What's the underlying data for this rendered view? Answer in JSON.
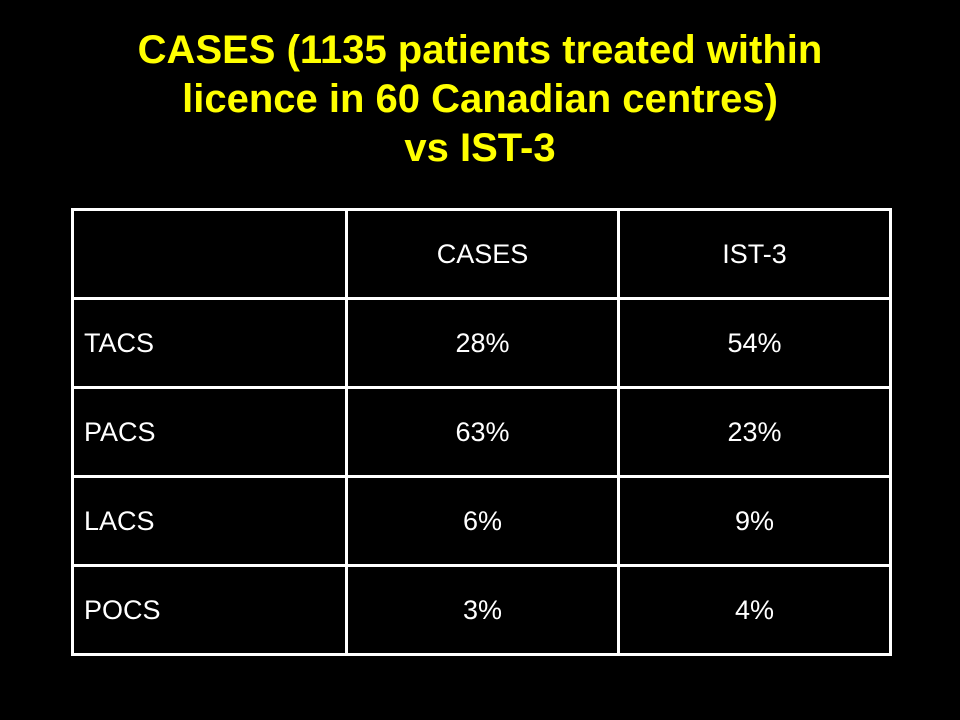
{
  "slide": {
    "title_lines": [
      "CASES (1135 patients treated within",
      "licence in 60 Canadian centres)",
      "vs  IST-3"
    ],
    "colors": {
      "background": "#000000",
      "title": "#FFFF00",
      "text": "#FFFFFF",
      "grid": "#FFFFFF"
    }
  },
  "table": {
    "header": [
      "",
      "CASES",
      "IST-3"
    ],
    "rows": [
      [
        "TACS",
        "28%",
        "54%"
      ],
      [
        "PACS",
        "63%",
        "23%"
      ],
      [
        "LACS",
        "6%",
        "9%"
      ],
      [
        "POCS",
        "3%",
        "4%"
      ]
    ]
  }
}
